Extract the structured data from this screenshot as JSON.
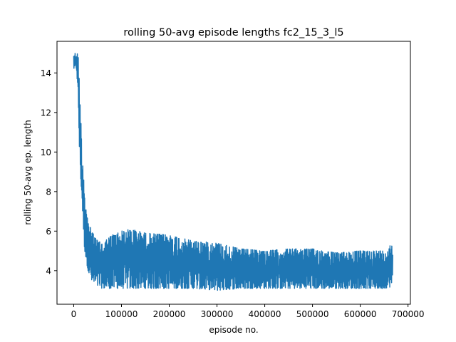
{
  "chart_data": {
    "type": "line",
    "title": "rolling 50-avg episode lengths fc2_15_3_l5",
    "xlabel": "episode no.",
    "ylabel": "rolling 50-avg ep. length",
    "xlim": [
      -35000,
      705000
    ],
    "ylim": [
      2.3,
      15.6
    ],
    "xticks": [
      0,
      100000,
      200000,
      300000,
      400000,
      500000,
      600000,
      700000
    ],
    "xtick_labels": [
      "0",
      "100000",
      "200000",
      "300000",
      "400000",
      "500000",
      "600000",
      "700000"
    ],
    "yticks": [
      4,
      6,
      8,
      10,
      12,
      14
    ],
    "ytick_labels": [
      "4",
      "6",
      "8",
      "10",
      "12",
      "14"
    ],
    "grid": false,
    "legend": "none",
    "series": [
      {
        "color": "#1f77b4",
        "x": [
          0,
          2000,
          4000,
          5000,
          6000,
          7000,
          8000,
          9000,
          10000,
          11000,
          12000,
          14000,
          16000,
          18000,
          20000,
          22000,
          24000,
          27000,
          30000,
          35000,
          40000,
          50000,
          60000,
          80000,
          100000,
          120000,
          150000,
          200000,
          250000,
          300000,
          350000,
          400000,
          450000,
          500000,
          550000,
          600000,
          650000,
          668000
        ],
        "y_upper": [
          15.0,
          15.0,
          15.0,
          15.0,
          15.0,
          15.0,
          15.0,
          14.9,
          14.7,
          14.2,
          13.4,
          12.3,
          11.0,
          9.7,
          9.4,
          8.6,
          7.6,
          7.0,
          6.5,
          6.2,
          5.9,
          5.5,
          5.4,
          5.8,
          6.0,
          6.1,
          5.9,
          5.8,
          5.5,
          5.4,
          5.1,
          5.0,
          5.1,
          5.1,
          4.9,
          5.0,
          5.0,
          5.4
        ],
        "y_lower": [
          14.2,
          14.2,
          14.2,
          14.2,
          14.2,
          13.8,
          13.0,
          12.6,
          12.0,
          11.0,
          10.0,
          9.0,
          8.0,
          7.3,
          6.2,
          5.3,
          4.8,
          4.4,
          4.0,
          3.6,
          3.3,
          3.2,
          3.1,
          3.1,
          3.1,
          3.1,
          3.1,
          3.1,
          3.1,
          3.0,
          3.1,
          3.1,
          3.1,
          3.1,
          3.1,
          3.1,
          3.1,
          3.2
        ]
      }
    ]
  }
}
